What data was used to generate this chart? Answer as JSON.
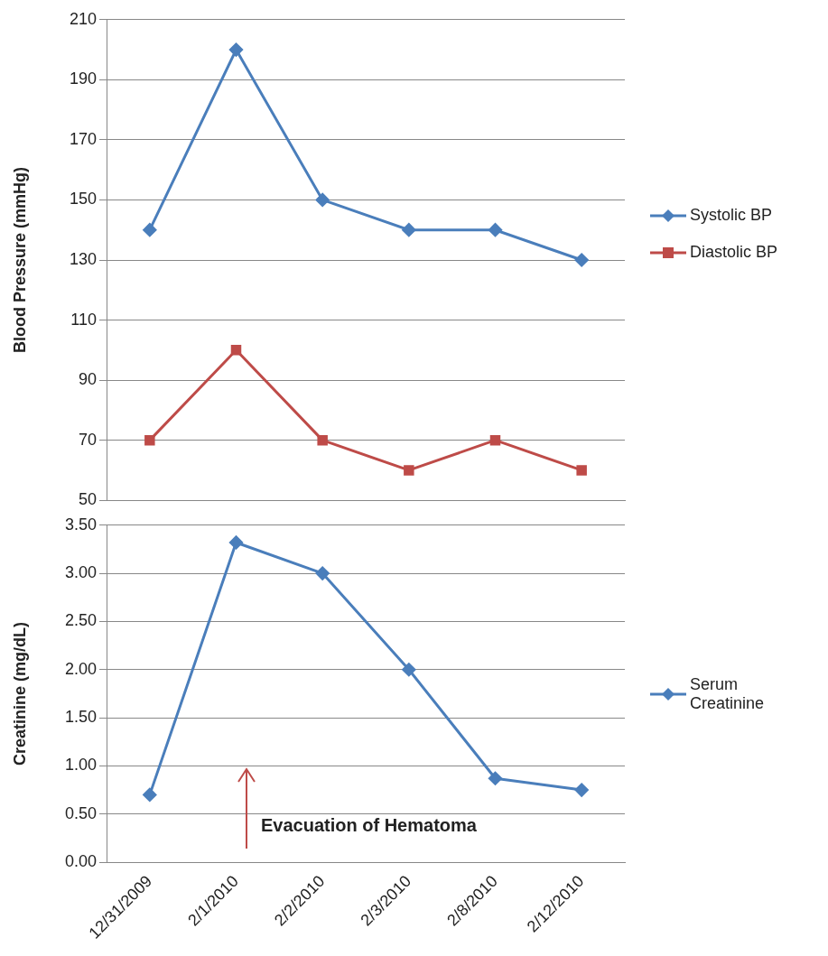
{
  "chart_data": [
    {
      "type": "line",
      "ylabel": "Blood Pressure (mmHg)",
      "categories": [
        null,
        null,
        null,
        null,
        null,
        null
      ],
      "series": [
        {
          "name": "Systolic BP",
          "color": "#4a7ebb",
          "marker": "diamond",
          "values": [
            140,
            200,
            150,
            140,
            140,
            130
          ]
        },
        {
          "name": "Diastolic BP",
          "color": "#be4b48",
          "marker": "square",
          "values": [
            70,
            100,
            70,
            60,
            70,
            60
          ]
        }
      ],
      "ylim": [
        50,
        210
      ],
      "yticks": [
        50,
        70,
        90,
        110,
        130,
        150,
        170,
        190,
        210
      ],
      "grid": "y",
      "legend": "right",
      "tick_labels": "y",
      "line_style": "solid"
    },
    {
      "type": "line",
      "ylabel": "Creatinine (mg/dL)",
      "categories": [
        "12/31/2009",
        "2/1/2010",
        "2/2/2010",
        "2/3/2010",
        "2/8/2010",
        "2/12/2010"
      ],
      "series": [
        {
          "name": "Serum Creatinine",
          "color": "#4a7ebb",
          "marker": "diamond",
          "values": [
            0.7,
            3.32,
            3.0,
            2.0,
            0.87,
            0.75
          ]
        }
      ],
      "ylim": [
        0,
        3.5
      ],
      "yticks": [
        {
          "value": 0,
          "label": "0.00"
        },
        {
          "value": 0.5,
          "label": "0.50"
        },
        {
          "value": 1,
          "label": "1.00"
        },
        {
          "value": 1.5,
          "label": "1.50"
        },
        {
          "value": 2,
          "label": "2.00"
        },
        {
          "value": 2.5,
          "label": "2.50"
        },
        {
          "value": 3,
          "label": "3.00"
        },
        {
          "value": 3.5,
          "label": "3.50"
        }
      ],
      "grid": "y",
      "legend": "right",
      "line_style": "solid",
      "annotations": [
        "Evacuation of Hematoma"
      ]
    }
  ]
}
